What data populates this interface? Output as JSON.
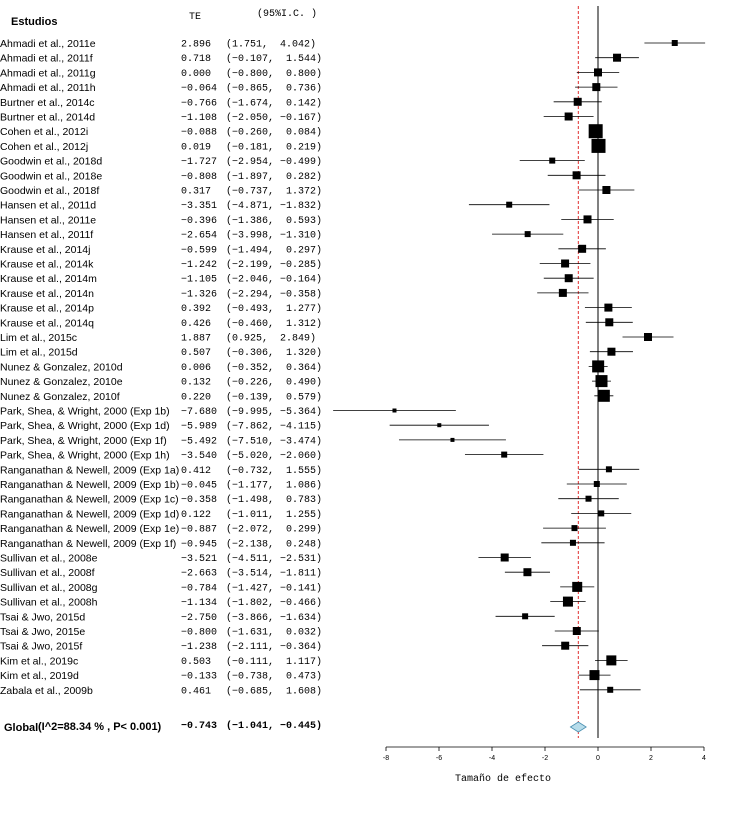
{
  "chart_data": {
    "type": "forest",
    "header_study": "Estudios",
    "header_effect": "TE",
    "header_ci": "(95%I.C. )",
    "xlabel": "Tamaño de efecto",
    "xlim": [
      -8,
      4
    ],
    "xticks": [
      -8,
      -6,
      -4,
      -2,
      0,
      2,
      4
    ],
    "reference_line": 0,
    "summary_line": -0.743,
    "rows": [
      {
        "study": "Ahmadi et al., 2011e",
        "te": 2.896,
        "lo": 1.751,
        "hi": 4.042,
        "te_text": "2.896",
        "ci_text": "(1.751,  4.042)",
        "w": 3
      },
      {
        "study": "Ahmadi et al., 2011f",
        "te": 0.718,
        "lo": -0.107,
        "hi": 1.544,
        "te_text": "0.718",
        "ci_text": "(−0.107,  1.544)",
        "w": 4
      },
      {
        "study": "Ahmadi et al., 2011g",
        "te": 0.0,
        "lo": -0.8,
        "hi": 0.8,
        "te_text": "0.000",
        "ci_text": "(−0.800,  0.800)",
        "w": 4
      },
      {
        "study": "Ahmadi et al., 2011h",
        "te": -0.064,
        "lo": -0.865,
        "hi": 0.736,
        "te_text": "−0.064",
        "ci_text": "(−0.865,  0.736)",
        "w": 4
      },
      {
        "study": "Burtner et al., 2014c",
        "te": -0.766,
        "lo": -1.674,
        "hi": 0.142,
        "te_text": "−0.766",
        "ci_text": "(−1.674,  0.142)",
        "w": 4
      },
      {
        "study": "Burtner et al., 2014d",
        "te": -1.108,
        "lo": -2.05,
        "hi": -0.167,
        "te_text": "−1.108",
        "ci_text": "(−2.050, −0.167)",
        "w": 4
      },
      {
        "study": "Cohen et al., 2012i",
        "te": -0.088,
        "lo": -0.26,
        "hi": 0.084,
        "te_text": "−0.088",
        "ci_text": "(−0.260,  0.084)",
        "w": 7
      },
      {
        "study": "Cohen et al., 2012j",
        "te": 0.019,
        "lo": -0.181,
        "hi": 0.219,
        "te_text": "0.019",
        "ci_text": "(−0.181,  0.219)",
        "w": 7
      },
      {
        "study": "Goodwin et al., 2018d",
        "te": -1.727,
        "lo": -2.954,
        "hi": -0.499,
        "te_text": "−1.727",
        "ci_text": "(−2.954, −0.499)",
        "w": 3
      },
      {
        "study": "Goodwin et al., 2018e",
        "te": -0.808,
        "lo": -1.897,
        "hi": 0.282,
        "te_text": "−0.808",
        "ci_text": "(−1.897,  0.282)",
        "w": 4
      },
      {
        "study": "Goodwin et al., 2018f",
        "te": 0.317,
        "lo": -0.737,
        "hi": 1.372,
        "te_text": "0.317",
        "ci_text": "(−0.737,  1.372)",
        "w": 4
      },
      {
        "study": "Hansen et al., 2011d",
        "te": -3.351,
        "lo": -4.871,
        "hi": -1.832,
        "te_text": "−3.351",
        "ci_text": "(−4.871, −1.832)",
        "w": 3
      },
      {
        "study": "Hansen et al., 2011e",
        "te": -0.396,
        "lo": -1.386,
        "hi": 0.593,
        "te_text": "−0.396",
        "ci_text": "(−1.386,  0.593)",
        "w": 4
      },
      {
        "study": "Hansen et al., 2011f",
        "te": -2.654,
        "lo": -3.998,
        "hi": -1.31,
        "te_text": "−2.654",
        "ci_text": "(−3.998, −1.310)",
        "w": 3
      },
      {
        "study": "Krause et al., 2014j",
        "te": -0.599,
        "lo": -1.494,
        "hi": 0.297,
        "te_text": "−0.599",
        "ci_text": "(−1.494,  0.297)",
        "w": 4
      },
      {
        "study": "Krause et al., 2014k",
        "te": -1.242,
        "lo": -2.199,
        "hi": -0.285,
        "te_text": "−1.242",
        "ci_text": "(−2.199, −0.285)",
        "w": 4
      },
      {
        "study": "Krause et al., 2014m",
        "te": -1.105,
        "lo": -2.046,
        "hi": -0.164,
        "te_text": "−1.105",
        "ci_text": "(−2.046, −0.164)",
        "w": 4
      },
      {
        "study": "Krause et al., 2014n",
        "te": -1.326,
        "lo": -2.294,
        "hi": -0.358,
        "te_text": "−1.326",
        "ci_text": "(−2.294, −0.358)",
        "w": 4
      },
      {
        "study": "Krause et al., 2014p",
        "te": 0.392,
        "lo": -0.493,
        "hi": 1.277,
        "te_text": "0.392",
        "ci_text": "(−0.493,  1.277)",
        "w": 4
      },
      {
        "study": "Krause et al., 2014q",
        "te": 0.426,
        "lo": -0.46,
        "hi": 1.312,
        "te_text": "0.426",
        "ci_text": "(−0.460,  1.312)",
        "w": 4
      },
      {
        "study": "Lim et al., 2015c",
        "te": 1.887,
        "lo": 0.925,
        "hi": 2.849,
        "te_text": "1.887",
        "ci_text": "(0.925,  2.849)",
        "w": 4
      },
      {
        "study": "Lim et al., 2015d",
        "te": 0.507,
        "lo": -0.306,
        "hi": 1.32,
        "te_text": "0.507",
        "ci_text": "(−0.306,  1.320)",
        "w": 4
      },
      {
        "study": "Nunez & Gonzalez, 2010d",
        "te": 0.006,
        "lo": -0.352,
        "hi": 0.364,
        "te_text": "0.006",
        "ci_text": "(−0.352,  0.364)",
        "w": 6
      },
      {
        "study": "Nunez & Gonzalez, 2010e",
        "te": 0.132,
        "lo": -0.226,
        "hi": 0.49,
        "te_text": "0.132",
        "ci_text": "(−0.226,  0.490)",
        "w": 6
      },
      {
        "study": "Nunez & Gonzalez, 2010f",
        "te": 0.22,
        "lo": -0.139,
        "hi": 0.579,
        "te_text": "0.220",
        "ci_text": "(−0.139,  0.579)",
        "w": 6
      },
      {
        "study": "Park, Shea, & Wright, 2000 (Exp 1b)",
        "te": -7.68,
        "lo": -9.995,
        "hi": -5.364,
        "te_text": "−7.680",
        "ci_text": "(−9.995, −5.364)",
        "w": 2
      },
      {
        "study": "Park, Shea, & Wright, 2000 (Exp 1d)",
        "te": -5.989,
        "lo": -7.862,
        "hi": -4.115,
        "te_text": "−5.989",
        "ci_text": "(−7.862, −4.115)",
        "w": 2
      },
      {
        "study": "Park, Shea, & Wright, 2000 (Exp 1f)",
        "te": -5.492,
        "lo": -7.51,
        "hi": -3.474,
        "te_text": "−5.492",
        "ci_text": "(−7.510, −3.474)",
        "w": 2
      },
      {
        "study": "Park, Shea, & Wright, 2000 (Exp 1h)",
        "te": -3.54,
        "lo": -5.02,
        "hi": -2.06,
        "te_text": "−3.540",
        "ci_text": "(−5.020, −2.060)",
        "w": 3
      },
      {
        "study": "Ranganathan & Newell, 2009 (Exp 1a)",
        "te": 0.412,
        "lo": -0.732,
        "hi": 1.555,
        "te_text": "0.412",
        "ci_text": "(−0.732,  1.555)",
        "w": 3
      },
      {
        "study": "Ranganathan & Newell, 2009 (Exp 1b)",
        "te": -0.045,
        "lo": -1.177,
        "hi": 1.086,
        "te_text": "−0.045",
        "ci_text": "(−1.177,  1.086)",
        "w": 3
      },
      {
        "study": "Ranganathan & Newell, 2009 (Exp 1c)",
        "te": -0.358,
        "lo": -1.498,
        "hi": 0.783,
        "te_text": "−0.358",
        "ci_text": "(−1.498,  0.783)",
        "w": 3
      },
      {
        "study": "Ranganathan & Newell, 2009 (Exp 1d)",
        "te": 0.122,
        "lo": -1.011,
        "hi": 1.255,
        "te_text": "0.122",
        "ci_text": "(−1.011,  1.255)",
        "w": 3
      },
      {
        "study": "Ranganathan & Newell, 2009 (Exp 1e)",
        "te": -0.887,
        "lo": -2.072,
        "hi": 0.299,
        "te_text": "−0.887",
        "ci_text": "(−2.072,  0.299)",
        "w": 3
      },
      {
        "study": "Ranganathan & Newell, 2009 (Exp 1f)",
        "te": -0.945,
        "lo": -2.138,
        "hi": 0.248,
        "te_text": "−0.945",
        "ci_text": "(−2.138,  0.248)",
        "w": 3
      },
      {
        "study": "Sullivan et al., 2008e",
        "te": -3.521,
        "lo": -4.511,
        "hi": -2.531,
        "te_text": "−3.521",
        "ci_text": "(−4.511, −2.531)",
        "w": 4
      },
      {
        "study": "Sullivan et al., 2008f",
        "te": -2.663,
        "lo": -3.514,
        "hi": -1.811,
        "te_text": "−2.663",
        "ci_text": "(−3.514, −1.811)",
        "w": 4
      },
      {
        "study": "Sullivan et al., 2008g",
        "te": -0.784,
        "lo": -1.427,
        "hi": -0.141,
        "te_text": "−0.784",
        "ci_text": "(−1.427, −0.141)",
        "w": 5
      },
      {
        "study": "Sullivan et al., 2008h",
        "te": -1.134,
        "lo": -1.802,
        "hi": -0.466,
        "te_text": "−1.134",
        "ci_text": "(−1.802, −0.466)",
        "w": 5
      },
      {
        "study": "Tsai & Jwo, 2015d",
        "te": -2.75,
        "lo": -3.866,
        "hi": -1.634,
        "te_text": "−2.750",
        "ci_text": "(−3.866, −1.634)",
        "w": 3
      },
      {
        "study": "Tsai & Jwo, 2015e",
        "te": -0.8,
        "lo": -1.631,
        "hi": 0.032,
        "te_text": "−0.800",
        "ci_text": "(−1.631,  0.032)",
        "w": 4
      },
      {
        "study": "Tsai & Jwo, 2015f",
        "te": -1.238,
        "lo": -2.111,
        "hi": -0.364,
        "te_text": "−1.238",
        "ci_text": "(−2.111, −0.364)",
        "w": 4
      },
      {
        "study": "Kim et al., 2019c",
        "te": 0.503,
        "lo": -0.111,
        "hi": 1.117,
        "te_text": "0.503",
        "ci_text": "(−0.111,  1.117)",
        "w": 5
      },
      {
        "study": "Kim et al., 2019d",
        "te": -0.133,
        "lo": -0.738,
        "hi": 0.473,
        "te_text": "−0.133",
        "ci_text": "(−0.738,  0.473)",
        "w": 5
      },
      {
        "study": "Zabala et al., 2009b",
        "te": 0.461,
        "lo": -0.685,
        "hi": 1.608,
        "te_text": "0.461",
        "ci_text": "(−0.685,  1.608)",
        "w": 3
      }
    ],
    "summary": {
      "label": "Global",
      "heterogeneity": "(I^2=88.34 % , P< 0.001)",
      "te": -0.743,
      "lo": -1.041,
      "hi": -0.445,
      "te_text": "−0.743",
      "ci_text": "(−1.041, −0.445)"
    },
    "colors": {
      "summary_line": "#e03030",
      "diamond_fill": "#b7dcea",
      "diamond_stroke": "#4a8fb0"
    }
  }
}
